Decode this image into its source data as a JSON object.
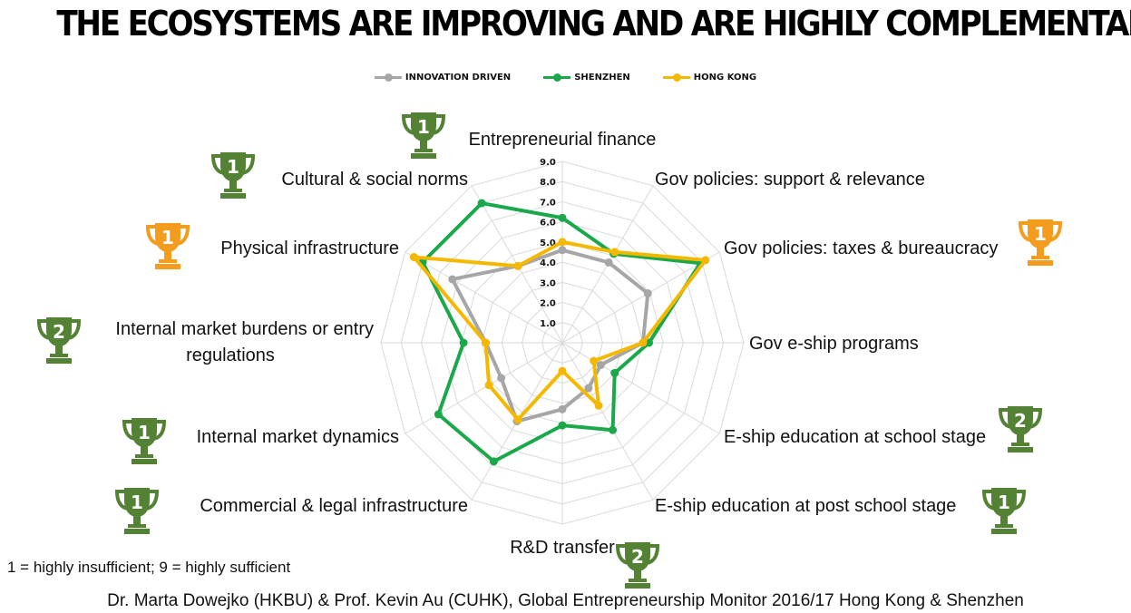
{
  "title": "THE ECOSYSTEMS ARE IMPROVING AND ARE  HIGHLY COMPLEMENTARY",
  "legend": {
    "items": [
      {
        "label": "INNOVATION DRIVEN",
        "color": "#a6a6a6"
      },
      {
        "label": "SHENZHEN",
        "color": "#1aa84a"
      },
      {
        "label": "HONG KONG",
        "color": "#f5b800"
      }
    ]
  },
  "note": "1 = highly insufficient; 9 = highly sufficient",
  "footer": "Dr. Marta Dowejko (HKBU) & Prof. Kevin Au (CUHK), Global Entrepreneurship Monitor 2016/17 Hong Kong & Shenzhen",
  "trophies": [
    {
      "rank": "1",
      "color": "#548235",
      "icon": "trophy-icon"
    },
    {
      "rank": "1",
      "color": "#548235",
      "icon": "trophy-icon"
    },
    {
      "rank": "1",
      "color": "#f39c1d",
      "icon": "trophy-icon"
    },
    {
      "rank": "1",
      "color": "#f39c1d",
      "icon": "trophy-icon"
    },
    {
      "rank": "2",
      "color": "#548235",
      "icon": "trophy-icon"
    },
    {
      "rank": "2",
      "color": "#548235",
      "icon": "trophy-icon"
    },
    {
      "rank": "1",
      "color": "#548235",
      "icon": "trophy-icon"
    },
    {
      "rank": "1",
      "color": "#548235",
      "icon": "trophy-icon"
    },
    {
      "rank": "1",
      "color": "#548235",
      "icon": "trophy-icon"
    },
    {
      "rank": "2",
      "color": "#548235",
      "icon": "trophy-icon"
    }
  ],
  "chart_data": {
    "type": "radar",
    "categories": [
      "Entrepreneurial finance",
      "Gov policies: support & relevance",
      "Gov policies: taxes & bureaucracy",
      "Gov e-ship programs",
      "E-ship education at school stage",
      "E-ship education at post school stage",
      "R&D transfer",
      "Commercial & legal infrastructure",
      "Internal market dynamics",
      "Internal market burdens or entry regulations",
      "Physical infrastructure",
      "Cultural & social norms"
    ],
    "category_lines": [
      [
        "Entrepreneurial finance"
      ],
      [
        "Gov policies: support & relevance"
      ],
      [
        "Gov policies: taxes & bureaucracy"
      ],
      [
        "Gov e-ship programs"
      ],
      [
        "E-ship education at school stage"
      ],
      [
        "E-ship education at post school stage"
      ],
      [
        "R&D transfer"
      ],
      [
        "Commercial & legal infrastructure"
      ],
      [
        "Internal market dynamics"
      ],
      [
        "Internal market burdens or entry",
        "regulations"
      ],
      [
        "Physical infrastructure"
      ],
      [
        "Cultural & social norms"
      ]
    ],
    "rmax": 9.0,
    "ticks": [
      "1.0",
      "2.0",
      "3.0",
      "4.0",
      "5.0",
      "6.0",
      "7.0",
      "8.0",
      "9.0"
    ],
    "series": [
      {
        "name": "INNOVATION DRIVEN",
        "color": "#a6a6a6",
        "values": [
          4.6,
          4.6,
          4.9,
          4.0,
          2.2,
          2.6,
          3.3,
          4.5,
          3.5,
          3.8,
          6.3,
          4.4
        ]
      },
      {
        "name": "SHENZHEN",
        "color": "#1aa84a",
        "values": [
          6.2,
          5.1,
          7.9,
          4.3,
          3.0,
          5.0,
          4.1,
          6.8,
          7.1,
          4.9,
          8.0,
          8.0
        ]
      },
      {
        "name": "HONG KONG",
        "color": "#f5b800",
        "values": [
          5.0,
          5.2,
          8.2,
          4.0,
          1.8,
          3.6,
          1.4,
          4.4,
          4.2,
          3.8,
          8.5,
          4.4
        ]
      }
    ],
    "grid": true,
    "legend_position": "top"
  }
}
